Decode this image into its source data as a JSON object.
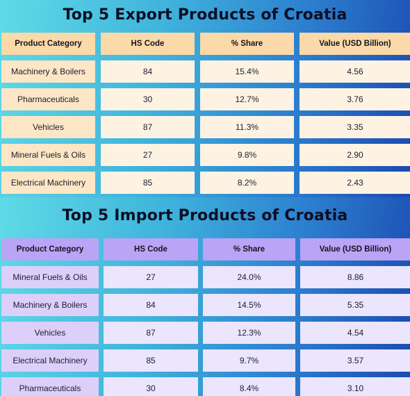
{
  "export_table": {
    "title": "Top 5 Export Products of Croatia",
    "columns": [
      "Product Category",
      "HS Code",
      "% Share",
      "Value (USD Billion)"
    ],
    "rows": [
      [
        "Machinery & Boilers",
        "84",
        "15.4%",
        "4.56"
      ],
      [
        "Pharmaceuticals",
        "30",
        "12.7%",
        "3.76"
      ],
      [
        "Vehicles",
        "87",
        "11.3%",
        "3.35"
      ],
      [
        "Mineral Fuels & Oils",
        "27",
        "9.8%",
        "2.90"
      ],
      [
        "Electrical Machinery",
        "85",
        "8.2%",
        "2.43"
      ]
    ],
    "colors": {
      "header": "#fcd9a8",
      "first_column": "#fde6c6",
      "cells": "#fef3e3"
    }
  },
  "import_table": {
    "title": "Top 5 Import Products of Croatia",
    "columns": [
      "Product Category",
      "HS Code",
      "% Share",
      "Value (USD Billion)"
    ],
    "rows": [
      [
        "Mineral Fuels & Oils",
        "27",
        "24.0%",
        "8.86"
      ],
      [
        "Machinery & Boilers",
        "84",
        "14.5%",
        "5.35"
      ],
      [
        "Vehicles",
        "87",
        "12.3%",
        "4.54"
      ],
      [
        "Electrical Machinery",
        "85",
        "9.7%",
        "3.57"
      ],
      [
        "Pharmaceuticals",
        "30",
        "8.4%",
        "3.10"
      ]
    ],
    "colors": {
      "header": "#b9a4f5",
      "first_column": "#dcd0fb",
      "cells": "#ebe5fd"
    }
  },
  "background_gradient": [
    "#5fdbe6",
    "#3fb3dc",
    "#2c7fcf",
    "#1b49b0"
  ]
}
